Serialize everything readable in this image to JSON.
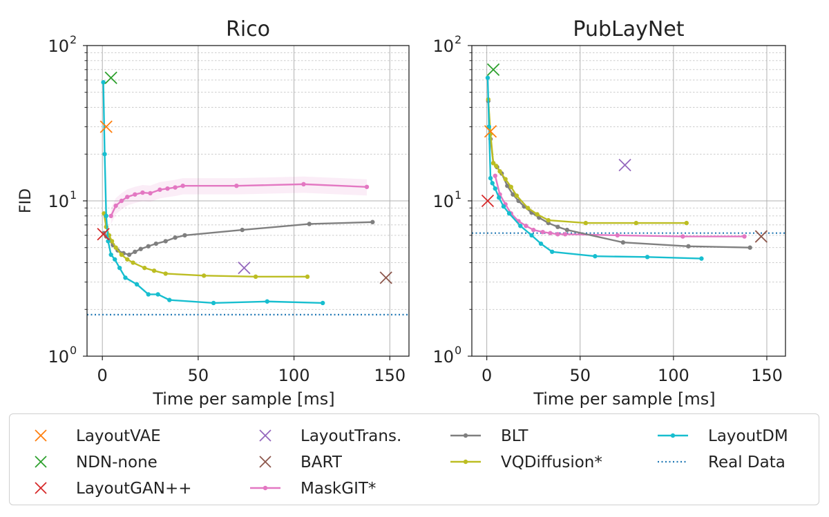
{
  "chart_data": [
    {
      "type": "line",
      "title": "Rico",
      "xlabel": "Time per sample [ms]",
      "ylabel": "FID",
      "yscale": "log",
      "xlim": [
        -8,
        160
      ],
      "ylim": [
        1,
        100
      ],
      "xticks": [
        0,
        50,
        100,
        150
      ],
      "xtick_labels": [
        "0",
        "50",
        "100",
        "150"
      ],
      "yticks": [
        1,
        10,
        100
      ],
      "ytick_labels": [
        {
          "base": "10",
          "exp": "0"
        },
        {
          "base": "10",
          "exp": "1"
        },
        {
          "base": "10",
          "exp": "2"
        }
      ],
      "real_data": 1.85,
      "points": [
        {
          "method": "LayoutVAE",
          "x": 2,
          "y": 30
        },
        {
          "method": "NDN-none",
          "x": 4.5,
          "y": 62
        },
        {
          "method": "LayoutGAN++",
          "x": 0.5,
          "y": 6.1
        },
        {
          "method": "LayoutTrans.",
          "x": 74,
          "y": 3.7
        },
        {
          "method": "BART",
          "x": 148,
          "y": 3.2
        }
      ],
      "series": [
        {
          "method": "MaskGIT*",
          "band": true,
          "x": [
            4.5,
            7,
            10,
            13,
            17,
            21,
            25,
            30,
            34,
            38,
            42,
            70,
            105,
            138
          ],
          "y": [
            8.0,
            9.3,
            10.0,
            10.6,
            11.0,
            11.3,
            11.2,
            11.8,
            12.0,
            12.2,
            12.5,
            12.5,
            12.8,
            12.3
          ]
        },
        {
          "method": "BLT",
          "x": [
            0.8,
            2,
            3.5,
            5.5,
            8,
            11,
            14,
            17,
            20,
            24,
            28,
            33,
            38,
            43,
            73,
            108,
            141
          ],
          "y": [
            6.2,
            5.9,
            5.6,
            5.2,
            4.8,
            4.6,
            4.5,
            4.7,
            4.9,
            5.1,
            5.3,
            5.5,
            5.8,
            6.0,
            6.5,
            7.1,
            7.3
          ]
        },
        {
          "method": "VQDiffusion*",
          "x": [
            0.8,
            2,
            3.5,
            5,
            7,
            10,
            13,
            16,
            22,
            27,
            33,
            53,
            80,
            107
          ],
          "y": [
            8.3,
            6.8,
            6.0,
            5.5,
            5.0,
            4.5,
            4.2,
            4.0,
            3.7,
            3.55,
            3.4,
            3.3,
            3.25,
            3.25
          ]
        },
        {
          "method": "LayoutDM",
          "x": [
            0.5,
            1.2,
            2,
            3,
            4.5,
            6.5,
            9,
            12,
            18,
            24,
            29,
            35,
            58,
            86,
            115
          ],
          "y": [
            58,
            20,
            8.0,
            5.5,
            4.5,
            4.2,
            3.7,
            3.2,
            2.9,
            2.5,
            2.5,
            2.3,
            2.2,
            2.25,
            2.2
          ]
        }
      ]
    },
    {
      "type": "line",
      "title": "PubLayNet",
      "xlabel": "Time per sample [ms]",
      "ylabel": "",
      "yscale": "log",
      "xlim": [
        -8,
        160
      ],
      "ylim": [
        1,
        100
      ],
      "xticks": [
        0,
        50,
        100,
        150
      ],
      "xtick_labels": [
        "0",
        "50",
        "100",
        "150"
      ],
      "yticks": [
        1,
        10,
        100
      ],
      "ytick_labels": [
        {
          "base": "10",
          "exp": "0"
        },
        {
          "base": "10",
          "exp": "1"
        },
        {
          "base": "10",
          "exp": "2"
        }
      ],
      "real_data": 6.2,
      "points": [
        {
          "method": "LayoutVAE",
          "x": 2,
          "y": 28
        },
        {
          "method": "NDN-none",
          "x": 3.5,
          "y": 70
        },
        {
          "method": "LayoutGAN++",
          "x": 0.5,
          "y": 10
        },
        {
          "method": "LayoutTrans.",
          "x": 74,
          "y": 17
        },
        {
          "method": "BART",
          "x": 147,
          "y": 5.9
        }
      ],
      "series": [
        {
          "method": "MaskGIT*",
          "band": false,
          "x": [
            4.5,
            7,
            10,
            13,
            17,
            21,
            25,
            30,
            34,
            38,
            42,
            70,
            105,
            138
          ],
          "y": [
            14.5,
            11.0,
            9.5,
            8.3,
            7.4,
            6.9,
            6.5,
            6.3,
            6.2,
            6.1,
            6.1,
            6.0,
            5.9,
            5.9
          ]
        },
        {
          "method": "BLT",
          "x": [
            0.8,
            2,
            3.5,
            5.5,
            8,
            11,
            14,
            17,
            20,
            24,
            28,
            33,
            38,
            43,
            73,
            108,
            141
          ],
          "y": [
            44,
            25,
            17.5,
            16.5,
            15,
            12.5,
            11,
            10,
            9.2,
            8.4,
            7.8,
            7.2,
            6.8,
            6.5,
            5.4,
            5.1,
            5.0
          ]
        },
        {
          "method": "VQDiffusion*",
          "x": [
            0.8,
            2,
            3.5,
            5,
            7,
            10,
            13,
            16,
            22,
            27,
            33,
            53,
            80,
            107
          ],
          "y": [
            45,
            27,
            17.5,
            16.8,
            15.5,
            13.8,
            12.3,
            10.8,
            9.0,
            8.2,
            7.5,
            7.2,
            7.2,
            7.2
          ]
        },
        {
          "method": "LayoutDM",
          "x": [
            0.5,
            1.2,
            2,
            3,
            4.5,
            6.5,
            9,
            12,
            18,
            24,
            29,
            35,
            58,
            86,
            115
          ],
          "y": [
            62,
            30,
            14,
            13,
            12,
            10.5,
            9.2,
            8.3,
            6.9,
            6.0,
            5.3,
            4.7,
            4.4,
            4.35,
            4.25
          ]
        }
      ]
    }
  ],
  "legend": {
    "entries": [
      {
        "method": "LayoutVAE",
        "label": "LayoutVAE",
        "marker": "x",
        "color": "#ff7f0e"
      },
      {
        "method": "NDN-none",
        "label": "NDN-none",
        "marker": "x",
        "color": "#2ca02c"
      },
      {
        "method": "LayoutGAN++",
        "label": "LayoutGAN++",
        "marker": "x",
        "color": "#d62728"
      },
      {
        "method": "LayoutTrans.",
        "label": "LayoutTrans.",
        "marker": "x",
        "color": "#9467bd"
      },
      {
        "method": "BART",
        "label": "BART",
        "marker": "x",
        "color": "#8c564b"
      },
      {
        "method": "MaskGIT*",
        "label": "MaskGIT*",
        "marker": "line",
        "color": "#e377c2"
      },
      {
        "method": "BLT",
        "label": "BLT",
        "marker": "line",
        "color": "#7f7f7f"
      },
      {
        "method": "VQDiffusion*",
        "label": "VQDiffusion*",
        "marker": "line",
        "color": "#bcbd22"
      },
      {
        "method": "LayoutDM",
        "label": "LayoutDM",
        "marker": "line",
        "color": "#17becf"
      },
      {
        "method": "Real Data",
        "label": "Real Data",
        "marker": "dotted",
        "color": "#1f77b4"
      }
    ]
  }
}
